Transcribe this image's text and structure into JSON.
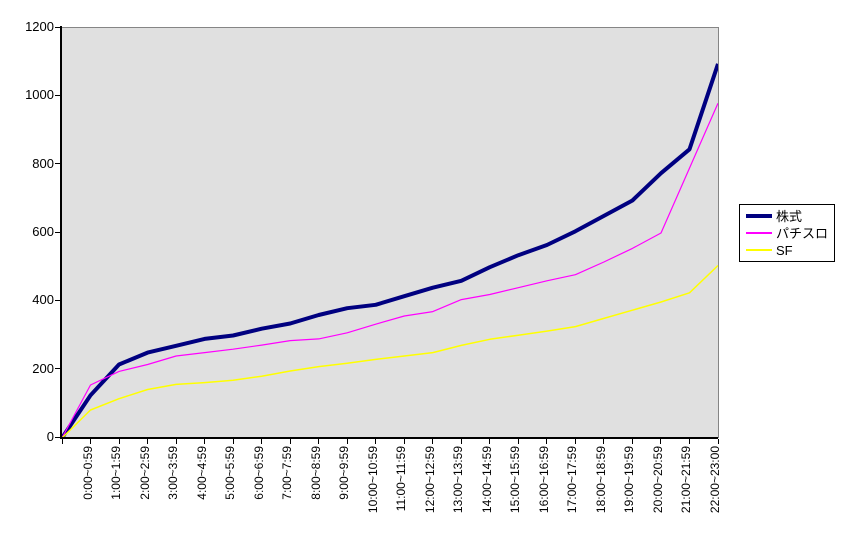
{
  "chart_data": {
    "type": "line",
    "title": "",
    "xlabel": "",
    "ylabel": "",
    "categories": [
      "0:00~0:59",
      "1:00~1:59",
      "2:00~2:59",
      "3:00~3:59",
      "4:00~4:59",
      "5:00~5:59",
      "6:00~6:59",
      "7:00~7:59",
      "8:00~8:59",
      "9:00~9:59",
      "10:00~10:59",
      "11:00~11:59",
      "12:00~12:59",
      "13:00~13:59",
      "14:00~14:59",
      "15:00~15:59",
      "16:00~16:59",
      "17:00~17:59",
      "18:00~18:59",
      "19:00~19:59",
      "20:00~20:59",
      "21:00~21:59",
      "22:00~23:00"
    ],
    "series": [
      {
        "name": "株式",
        "color": "#000080",
        "line_width": 4,
        "values": [
          125,
          215,
          250,
          270,
          290,
          300,
          320,
          335,
          360,
          380,
          390,
          415,
          440,
          460,
          500,
          535,
          565,
          605,
          650,
          695,
          775,
          845,
          1095
        ]
      },
      {
        "name": "パチスロ",
        "color": "#FF00FF",
        "line_width": 1.2,
        "values": [
          155,
          195,
          215,
          240,
          250,
          260,
          272,
          285,
          290,
          308,
          333,
          357,
          370,
          405,
          420,
          440,
          460,
          478,
          515,
          555,
          600,
          790,
          980
        ]
      },
      {
        "name": "SF",
        "color": "#FFFF00",
        "line_width": 1.5,
        "values": [
          82,
          115,
          142,
          157,
          162,
          169,
          181,
          196,
          209,
          219,
          230,
          240,
          250,
          271,
          289,
          301,
          313,
          326,
          350,
          374,
          398,
          425,
          505
        ]
      }
    ],
    "lines_start_at_origin_zero": true,
    "ylim": [
      0,
      1200
    ],
    "yticks": [
      0,
      200,
      400,
      600,
      800,
      1000,
      1200
    ],
    "grid": false,
    "legend_position": "right",
    "plot_bg": "#E0E0E0",
    "outer_bg": "#FFFFFF"
  }
}
